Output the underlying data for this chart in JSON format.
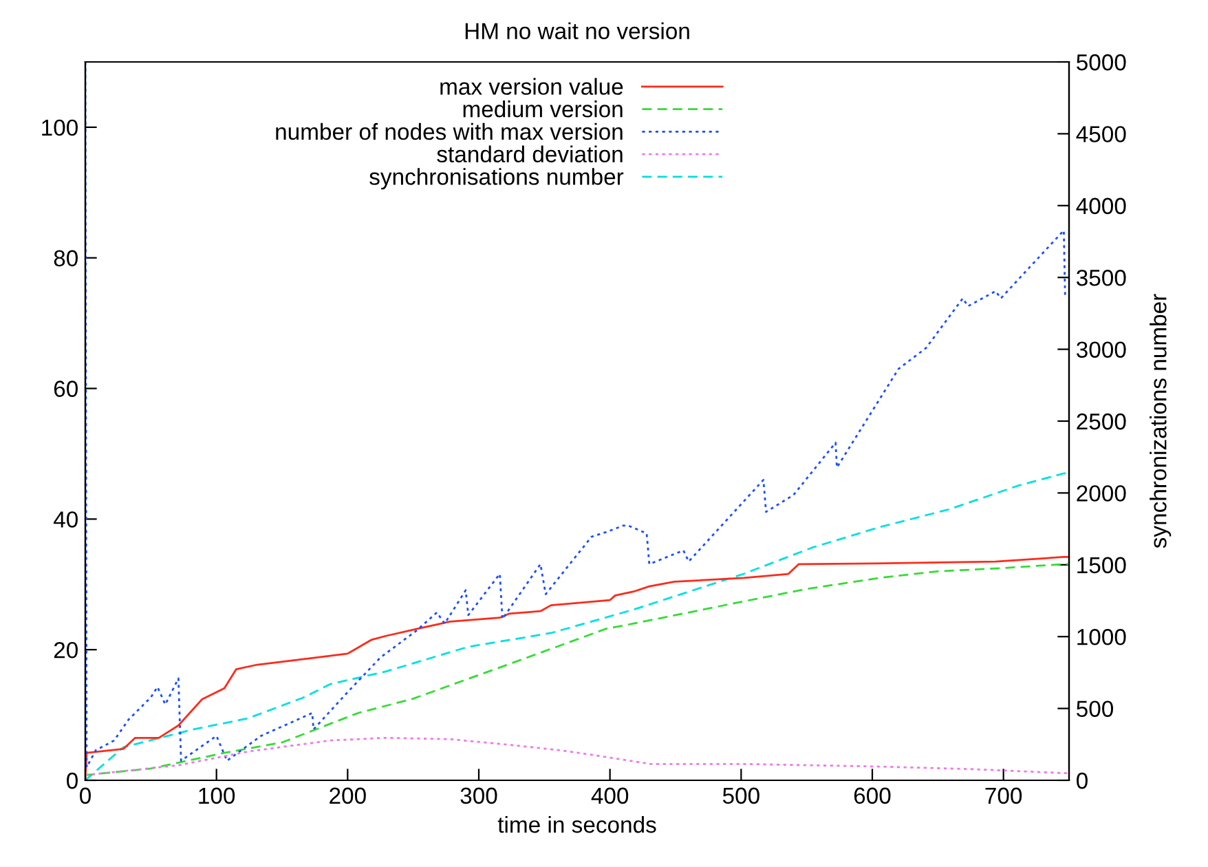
{
  "chart_data": {
    "type": "line",
    "title": "HM no wait no version",
    "xlabel": "time in seconds",
    "y2label": "synchronizations number",
    "xlim": [
      0,
      750
    ],
    "xticks": [
      0,
      100,
      200,
      300,
      400,
      500,
      600,
      700
    ],
    "ylim": [
      0,
      110
    ],
    "yticks": [
      0,
      20,
      40,
      60,
      80,
      100
    ],
    "y2lim": [
      0,
      5000
    ],
    "y2ticks": [
      0,
      500,
      1000,
      1500,
      2000,
      2500,
      3000,
      3500,
      4000,
      4500,
      5000
    ],
    "grid": false,
    "legend": "top",
    "marker": "none",
    "series": [
      {
        "name": "max version value",
        "color": "#ff2a1a",
        "line_style": "solid",
        "x": [
          0,
          1,
          29,
          38,
          56,
          71,
          89,
          106,
          115,
          131,
          176,
          200,
          218,
          229,
          253,
          278,
          316,
          323,
          347,
          355,
          400,
          404,
          418,
          430,
          449,
          502,
          536,
          544,
          600,
          694,
          746,
          750
        ],
        "values": [
          0,
          4.2,
          4.8,
          6.5,
          6.5,
          8.4,
          12.4,
          14.1,
          17,
          17.7,
          18.8,
          19.4,
          21.5,
          22.1,
          23.2,
          24.3,
          24.9,
          25.5,
          25.9,
          26.8,
          27.6,
          28.3,
          28.9,
          29.7,
          30.4,
          31,
          31.6,
          33.1,
          33.2,
          33.5,
          34.2,
          34.2
        ]
      },
      {
        "name": "medium version",
        "color": "#33dd33",
        "line_style": "dashed",
        "x": [
          0,
          50,
          106,
          150,
          208,
          250,
          326,
          397,
          418,
          502,
          550,
          606,
          650,
          700,
          746,
          750
        ],
        "values": [
          0.8,
          1.8,
          4.2,
          5.8,
          10.3,
          12.5,
          18,
          23.2,
          24,
          27.4,
          29.3,
          31,
          32,
          32.5,
          33.1,
          33.1
        ]
      },
      {
        "name": "number of nodes with max version",
        "color": "#1a4fff",
        "line_style": "dotted",
        "x": [
          0,
          1,
          8,
          22,
          33,
          50,
          55,
          61,
          71,
          73,
          100,
          108,
          134,
          173,
          174,
          200,
          225,
          253,
          268,
          274,
          290,
          292,
          316,
          318,
          347,
          351,
          386,
          397,
          410,
          414,
          428,
          430,
          456,
          460,
          517,
          519,
          540,
          572,
          573,
          620,
          641,
          669,
          673,
          694,
          698,
          746,
          747,
          750
        ],
        "values": [
          110,
          2,
          4.6,
          6.1,
          9.3,
          12.7,
          14.3,
          11.6,
          15.6,
          3,
          6.8,
          3,
          6.8,
          10.3,
          7.8,
          13.5,
          18.8,
          23,
          25.7,
          24,
          29.1,
          25.3,
          31.6,
          24.7,
          33.1,
          28.5,
          37.3,
          38,
          39,
          39,
          37.8,
          33.1,
          35.2,
          33.5,
          46,
          41.1,
          43.7,
          51.7,
          47.9,
          63,
          66.2,
          73.8,
          72.6,
          74.9,
          73.8,
          84.2,
          74.3,
          74.3
        ]
      },
      {
        "name": "standard deviation",
        "color": "#ee77ee",
        "line_style": "dotted",
        "x": [
          0,
          71,
          124,
          187,
          229,
          278,
          320,
          362,
          383,
          418,
          431,
          502,
          606,
          677,
          746,
          750
        ],
        "values": [
          0.8,
          2.3,
          4.4,
          6.1,
          6.5,
          6.3,
          5.5,
          4.6,
          4,
          2.9,
          2.5,
          2.5,
          2.1,
          1.7,
          1.1,
          1.1
        ]
      },
      {
        "name": "synchronisations number",
        "color": "#00e0e0",
        "line_style": "dashed",
        "axis": "y2",
        "x": [
          0,
          29,
          82,
          124,
          166,
          187,
          229,
          292,
          355,
          418,
          502,
          554,
          606,
          659,
          711,
          746,
          750
        ],
        "values": [
          0,
          230,
          354,
          431,
          575,
          670,
          757,
          929,
          1025,
          1188,
          1437,
          1619,
          1763,
          1887,
          2050,
          2136,
          2136
        ]
      }
    ]
  }
}
